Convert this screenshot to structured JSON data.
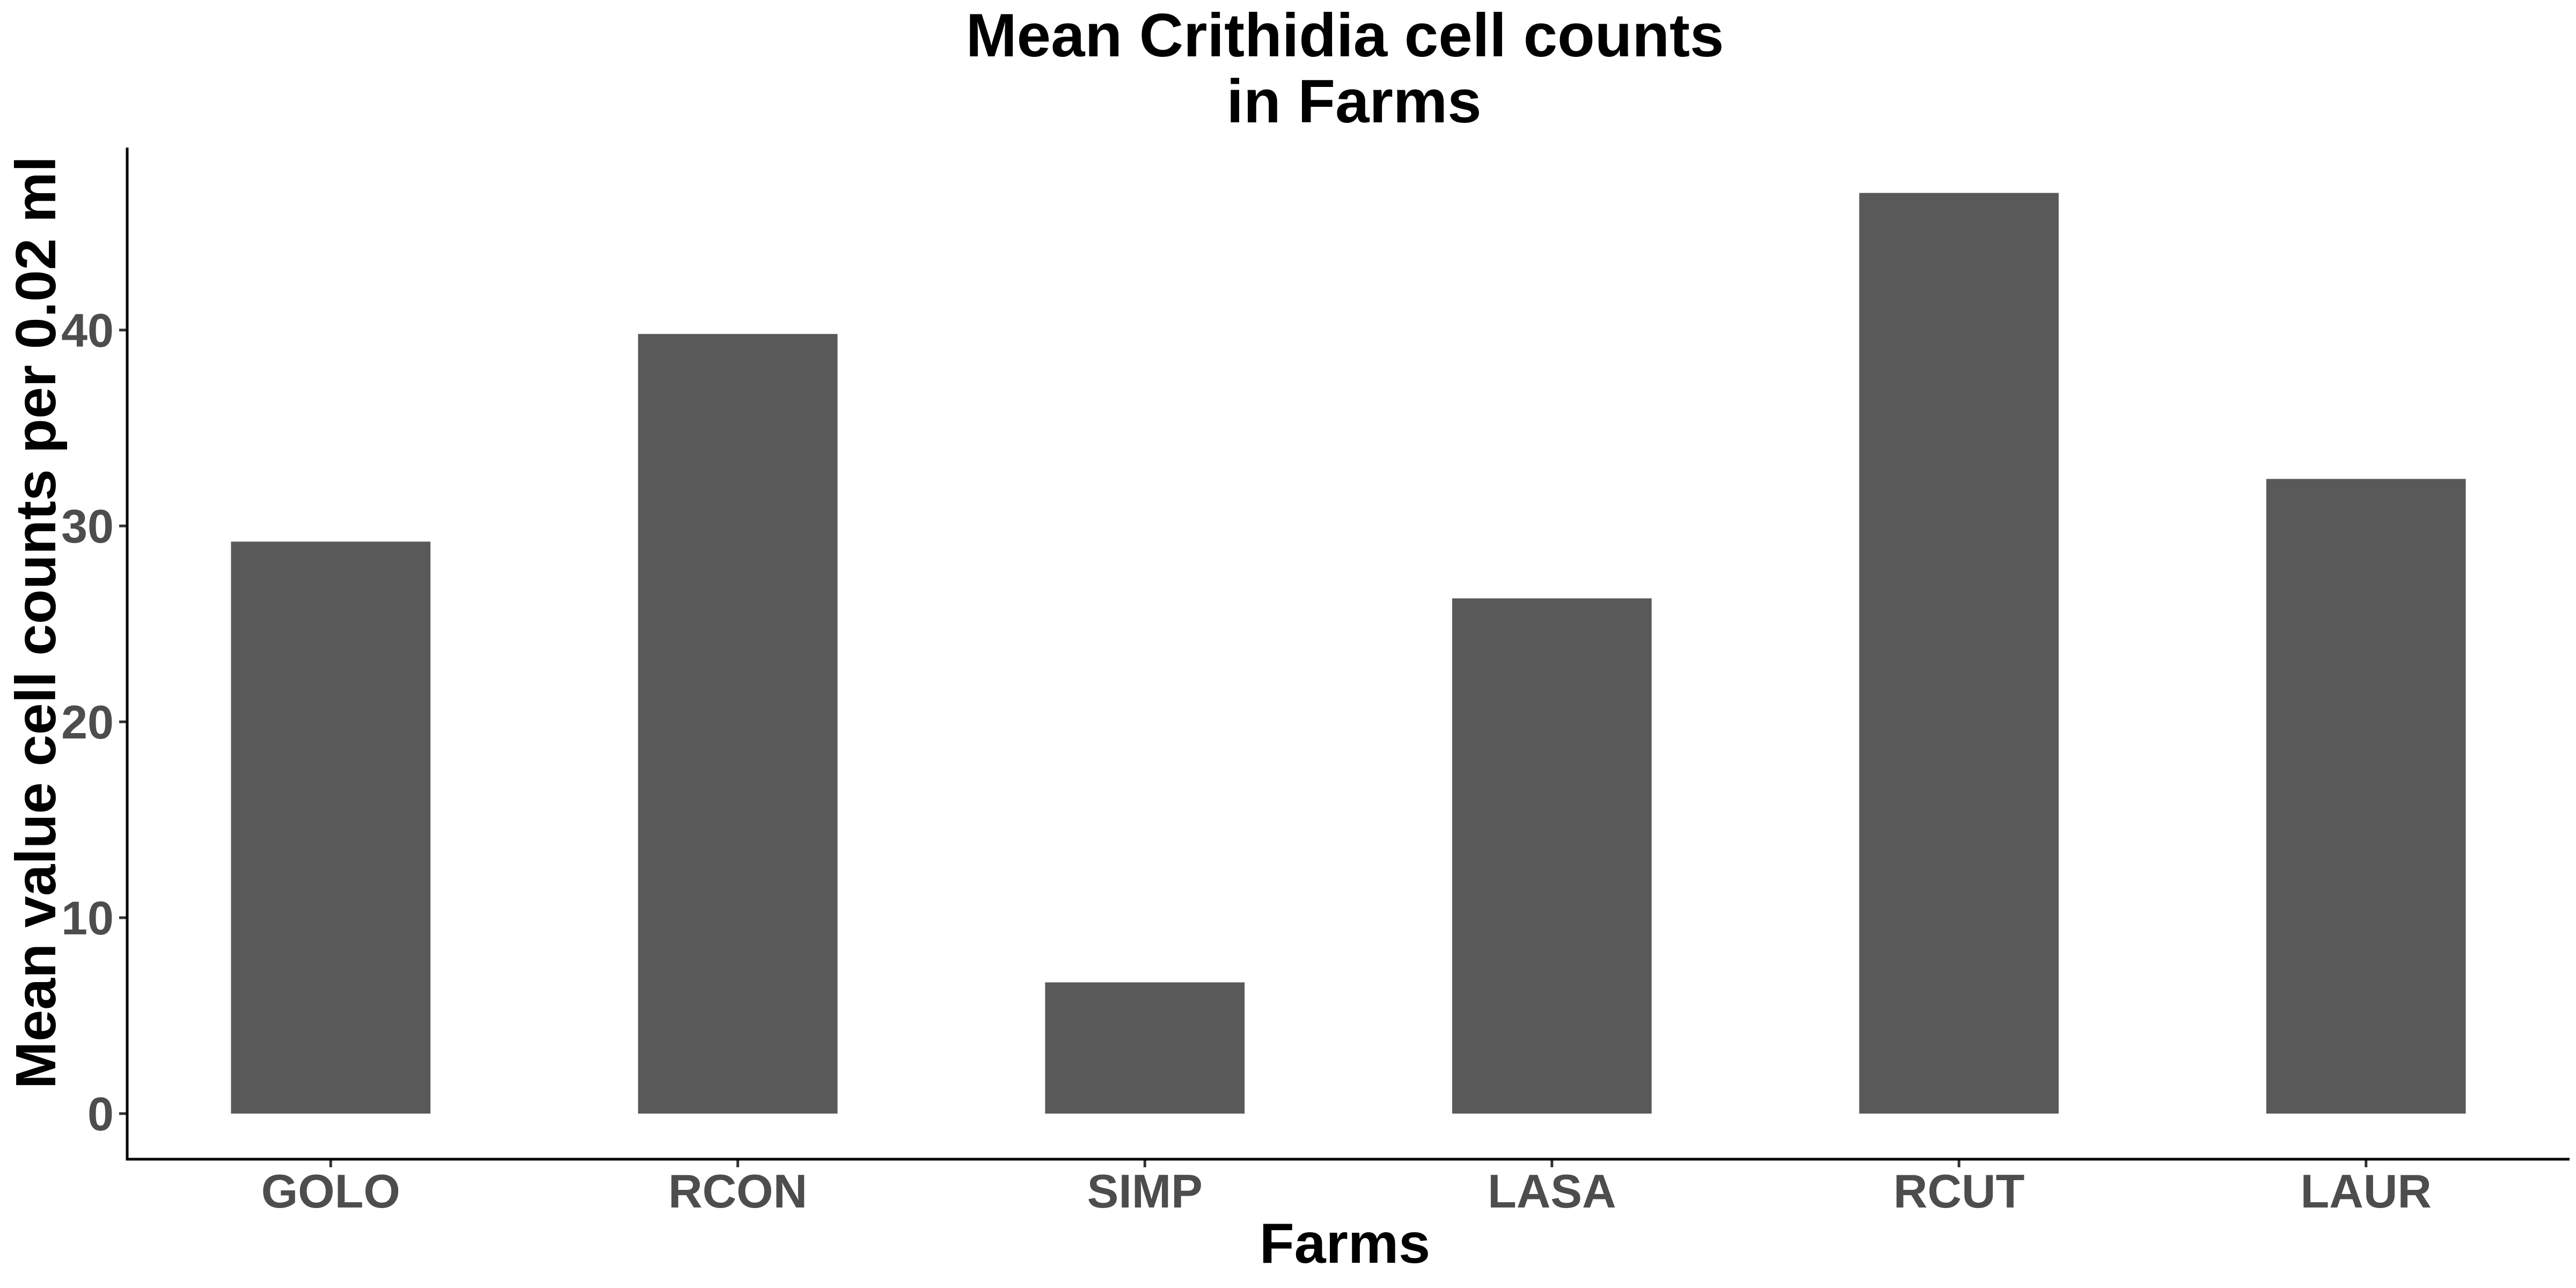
{
  "chart_data": {
    "type": "bar",
    "title_lines": [
      "Mean Crithidia cell counts",
      "in Farms"
    ],
    "xlabel": "Farms",
    "ylabel": "Mean value cell counts per 0.02 ml",
    "categories": [
      "GOLO",
      "RCON",
      "SIMP",
      "LASA",
      "RCUT",
      "LAUR"
    ],
    "values": [
      29.2,
      39.8,
      6.7,
      26.3,
      47.0,
      32.4
    ],
    "ylim": [
      0,
      49
    ],
    "yticks": [
      0,
      10,
      20,
      30,
      40
    ],
    "grid": false,
    "legend": "none",
    "bar_color": "#595959"
  }
}
